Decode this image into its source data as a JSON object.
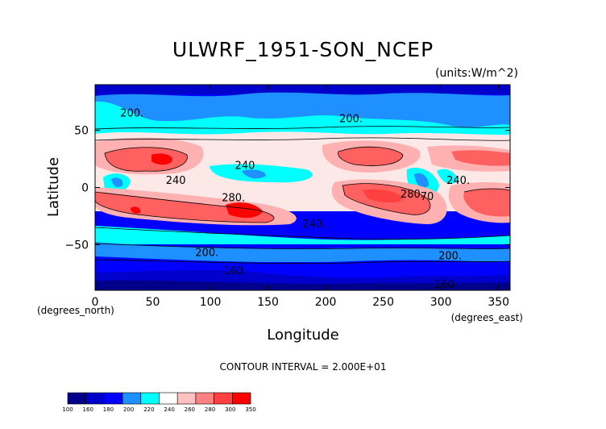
{
  "chart_data": {
    "type": "heatmap",
    "title": "ULWRF_1951-SON_NCEP",
    "units": "(units:W/m^2)",
    "xlabel": "Longitude",
    "ylabel": "Latitude",
    "x_unit_label": "(degrees_east)",
    "y_unit_label": "(degrees_north)",
    "xlim": [
      0,
      360
    ],
    "ylim": [
      -90,
      90
    ],
    "x_ticks": [
      0,
      50,
      100,
      150,
      200,
      250,
      300,
      350
    ],
    "x_tick_labels": [
      "0",
      "50",
      "100",
      "150",
      "200",
      "250",
      "300",
      "350"
    ],
    "y_ticks": [
      50,
      0,
      -50
    ],
    "y_tick_labels": [
      "50",
      "0",
      "−50"
    ],
    "contour_interval_text": "CONTOUR INTERVAL = 2.000E+01",
    "contour_labels": [
      {
        "text": "200.",
        "lon": 32,
        "lat": 65
      },
      {
        "text": "200.",
        "lon": 222,
        "lat": 60
      },
      {
        "text": "240",
        "lon": 70,
        "lat": 6
      },
      {
        "text": "240",
        "lon": 130,
        "lat": 19
      },
      {
        "text": "240.",
        "lon": 315,
        "lat": 6
      },
      {
        "text": "280.",
        "lon": 120,
        "lat": -9
      },
      {
        "text": "280.",
        "lon": 275,
        "lat": -6
      },
      {
        "text": "70",
        "lon": 288,
        "lat": -8
      },
      {
        "text": "240.",
        "lon": 190,
        "lat": -32
      },
      {
        "text": "200.",
        "lon": 97,
        "lat": -57
      },
      {
        "text": "200.",
        "lon": 308,
        "lat": -60
      },
      {
        "text": "160",
        "lon": 120,
        "lat": -73
      },
      {
        "text": "160",
        "lon": 303,
        "lat": -85
      }
    ],
    "colorbar": {
      "levels": [
        "100",
        "160",
        "180",
        "200",
        "220",
        "240",
        "260",
        "280",
        "300",
        "350"
      ],
      "colors": [
        "#00008b",
        "#0000cd",
        "#0000ff",
        "#1e90ff",
        "#00ffff",
        "#ffffff",
        "#ffc0c0",
        "#ff8080",
        "#ff4040",
        "#ff0000"
      ]
    }
  }
}
